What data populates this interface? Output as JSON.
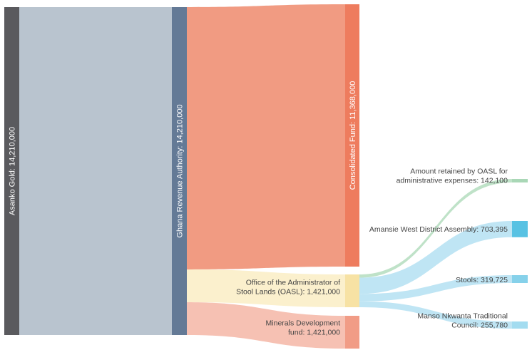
{
  "nodes": [
    {
      "id": "asanko",
      "label": "Asanko Gold: 14,210,000",
      "value": 14210000,
      "color": "#5a5a5e"
    },
    {
      "id": "gra",
      "label": "Ghana Revenue Authority: 14,210,000",
      "value": 14210000,
      "color": "#647a96"
    },
    {
      "id": "consolidated",
      "label": "Consolidated Fund: 11,368,000",
      "value": 11368000,
      "color": "#ee7c5e"
    },
    {
      "id": "oasl",
      "label_lines": [
        "Office of the Administrator of",
        "Stool Lands (OASL): 1,421,000"
      ],
      "value": 1421000,
      "color": "#f7e2a4"
    },
    {
      "id": "minerals",
      "label_lines": [
        "Minerals Development",
        "fund: 1,421,000"
      ],
      "value": 1421000,
      "color": "#f19c86"
    },
    {
      "id": "retained",
      "label_lines": [
        "Amount retained by OASL for",
        "administrative expenses: 142,100"
      ],
      "value": 142100,
      "color": "#a9d7b6"
    },
    {
      "id": "amansie",
      "label_lines": [
        "Amansie West District Assembly: 703,395"
      ],
      "value": 703395,
      "color": "#58c2e3"
    },
    {
      "id": "stools",
      "label_lines": [
        "Stools: 319,725"
      ],
      "value": 319725,
      "color": "#86d1ea"
    },
    {
      "id": "manso",
      "label_lines": [
        "Manso Nkwanta Traditional",
        "Council: 255,780"
      ],
      "value": 255780,
      "color": "#a3dcf0"
    }
  ],
  "links": [
    {
      "source": "asanko",
      "target": "gra",
      "value": 14210000,
      "color": "#b9c4cf"
    },
    {
      "source": "gra",
      "target": "consolidated",
      "value": 11368000,
      "color": "#f19b82"
    },
    {
      "source": "gra",
      "target": "oasl",
      "value": 1421000,
      "color": "#fbf0cd"
    },
    {
      "source": "gra",
      "target": "minerals",
      "value": 1421000,
      "color": "#f6c1b3"
    },
    {
      "source": "oasl",
      "target": "retained",
      "value": 142100,
      "color": "#bfe2c8"
    },
    {
      "source": "oasl",
      "target": "amansie",
      "value": 703395,
      "color": "#bfe5f4"
    },
    {
      "source": "oasl",
      "target": "stools",
      "value": 319725,
      "color": "#bfe5f4"
    },
    {
      "source": "oasl",
      "target": "manso",
      "value": 255780,
      "color": "#bfe5f4"
    }
  ]
}
